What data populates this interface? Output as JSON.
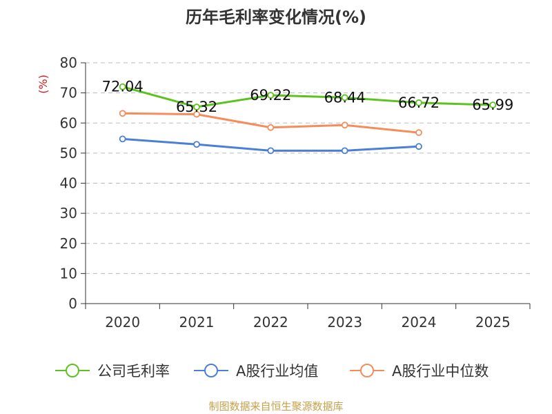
{
  "title": "历年毛利率变化情况(%)",
  "footer": "制图数据来自恒生聚源数据库",
  "colors": {
    "company": "#5cc21e",
    "industry_avg": "#4a7fd8",
    "industry_median": "#f58c5a",
    "axis": "#333333",
    "grid": "#bbbbbb",
    "unit": "#d21a1a"
  },
  "chart_data": {
    "type": "line",
    "title": "历年毛利率变化情况(%)",
    "xlabel": "",
    "ylabel": "(%)",
    "categories": [
      "2020",
      "2021",
      "2022",
      "2023",
      "2024",
      "2025"
    ],
    "ylim": [
      0,
      80
    ],
    "yticks": [
      0,
      10,
      20,
      30,
      40,
      50,
      60,
      70,
      80
    ],
    "grid": true,
    "legend_position": "bottom",
    "series": [
      {
        "name": "公司毛利率",
        "key": "company",
        "values": [
          72.04,
          65.32,
          69.22,
          68.44,
          66.72,
          65.99
        ],
        "labels": [
          "72.04",
          "65.32",
          "69.22",
          "68.44",
          "66.72",
          "65.99"
        ]
      },
      {
        "name": "A股行业均值",
        "key": "industry_avg",
        "values": [
          54.7,
          52.9,
          50.8,
          50.8,
          52.2,
          null
        ]
      },
      {
        "name": "A股行业中位数",
        "key": "industry_median",
        "values": [
          63.2,
          62.9,
          58.5,
          59.3,
          56.8,
          null
        ]
      }
    ]
  }
}
